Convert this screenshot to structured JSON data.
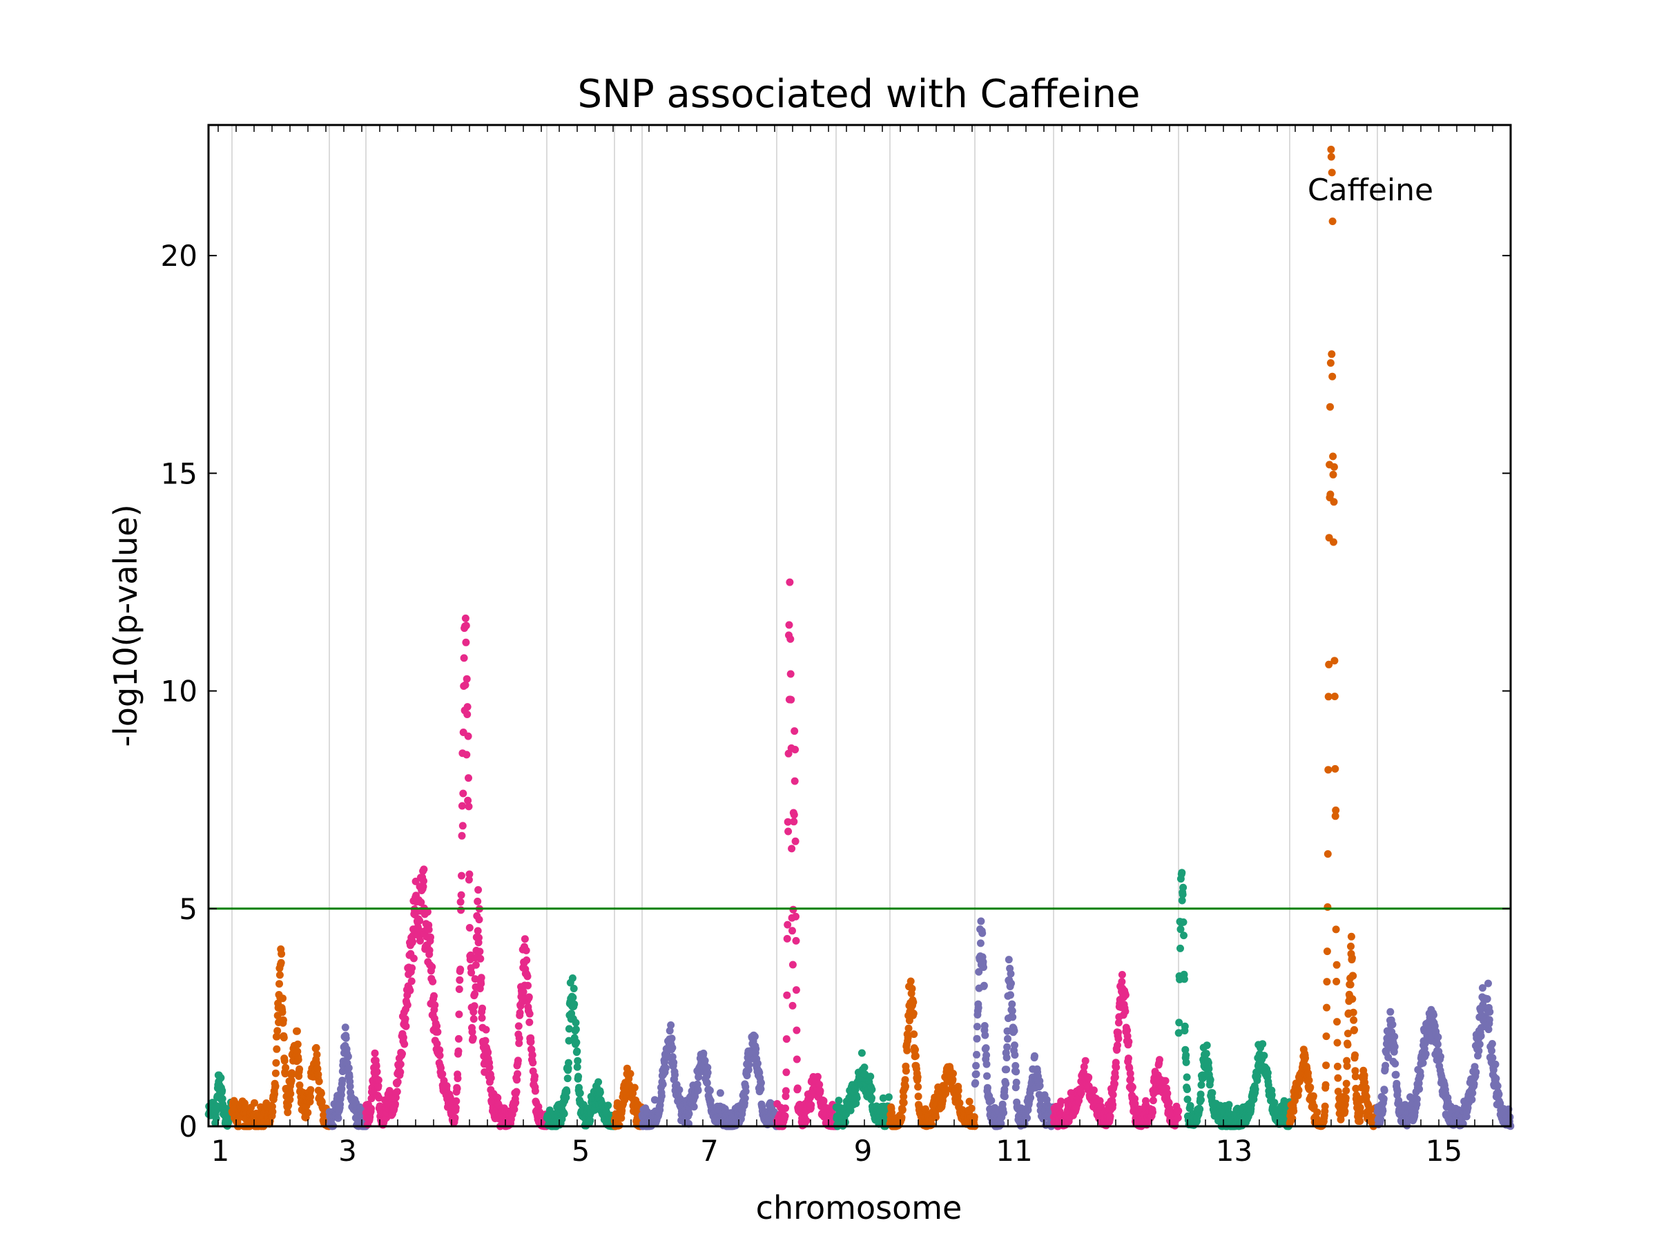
{
  "chart_data": {
    "type": "scatter",
    "title": "SNP associated with Caffeine",
    "xlabel": "chromosome",
    "ylabel": "-log10(p-value)",
    "ylim": [
      0,
      23
    ],
    "yticks": [
      0,
      5,
      10,
      15,
      20
    ],
    "xtick_labels": [
      "1",
      "3",
      "5",
      "7",
      "9",
      "11",
      "13",
      "15"
    ],
    "grid": "vertical chromosome boundary lines",
    "threshold": {
      "value": 5,
      "color": "#008000"
    },
    "annotation": {
      "text": "Caffeine",
      "chromosome": "14",
      "value": 21.3
    },
    "colors": [
      "#1b9e77",
      "#d95f02",
      "#7570b3",
      "#e7298a"
    ],
    "chromosomes": [
      {
        "name": "1",
        "color": "#1b9e77",
        "peaks": [
          {
            "pos": 0.5,
            "height": 0.8,
            "width": 0.25
          }
        ]
      },
      {
        "name": "2",
        "color": "#d95f02",
        "peaks": [
          {
            "pos": 0.5,
            "height": 3.6,
            "width": 0.08
          },
          {
            "pos": 0.65,
            "height": 2.0,
            "width": 0.1
          },
          {
            "pos": 0.85,
            "height": 1.4,
            "width": 0.1
          }
        ]
      },
      {
        "name": "3",
        "color": "#7570b3",
        "peaks": [
          {
            "pos": 0.45,
            "height": 1.8,
            "width": 0.25
          }
        ]
      },
      {
        "name": "4",
        "color": "#e7298a",
        "peaks": [
          {
            "pos": 0.05,
            "height": 1.1,
            "width": 0.04
          },
          {
            "pos": 0.3,
            "height": 5.6,
            "width": 0.16
          },
          {
            "pos": 0.55,
            "height": 11.0,
            "width": 0.05
          },
          {
            "pos": 0.62,
            "height": 4.6,
            "width": 0.05
          },
          {
            "pos": 0.67,
            "height": 1.8,
            "width": 0.04
          },
          {
            "pos": 0.88,
            "height": 3.9,
            "width": 0.07
          }
        ]
      },
      {
        "name": "5",
        "color": "#1b9e77",
        "peaks": [
          {
            "pos": 0.38,
            "height": 2.9,
            "width": 0.14
          },
          {
            "pos": 0.75,
            "height": 0.6,
            "width": 0.15
          }
        ]
      },
      {
        "name": "6",
        "color": "#d95f02",
        "peaks": [
          {
            "pos": 0.5,
            "height": 1.0,
            "width": 0.3
          }
        ]
      },
      {
        "name": "7",
        "color": "#7570b3",
        "peaks": [
          {
            "pos": 0.2,
            "height": 2.0,
            "width": 0.1
          },
          {
            "pos": 0.45,
            "height": 1.5,
            "width": 0.1
          },
          {
            "pos": 0.82,
            "height": 1.9,
            "width": 0.1
          }
        ]
      },
      {
        "name": "8",
        "color": "#e7298a",
        "peaks": [
          {
            "pos": 0.22,
            "height": 12.7,
            "width": 0.07
          },
          {
            "pos": 0.3,
            "height": 9.5,
            "width": 0.05
          },
          {
            "pos": 0.65,
            "height": 0.8,
            "width": 0.2
          }
        ]
      },
      {
        "name": "9",
        "color": "#1b9e77",
        "peaks": [
          {
            "pos": 0.5,
            "height": 1.1,
            "width": 0.3
          }
        ]
      },
      {
        "name": "10",
        "color": "#d95f02",
        "peaks": [
          {
            "pos": 0.25,
            "height": 3.1,
            "width": 0.12
          },
          {
            "pos": 0.7,
            "height": 1.1,
            "width": 0.2
          }
        ]
      },
      {
        "name": "11",
        "color": "#7570b3",
        "peaks": [
          {
            "pos": 0.08,
            "height": 4.6,
            "width": 0.1
          },
          {
            "pos": 0.45,
            "height": 3.3,
            "width": 0.1
          },
          {
            "pos": 0.75,
            "height": 1.2,
            "width": 0.12
          }
        ]
      },
      {
        "name": "12",
        "color": "#e7298a",
        "peaks": [
          {
            "pos": 0.25,
            "height": 1.0,
            "width": 0.15
          },
          {
            "pos": 0.55,
            "height": 3.4,
            "width": 0.1
          },
          {
            "pos": 0.85,
            "height": 1.1,
            "width": 0.1
          }
        ]
      },
      {
        "name": "13",
        "color": "#1b9e77",
        "peaks": [
          {
            "pos": 0.03,
            "height": 6.0,
            "width": 0.05
          },
          {
            "pos": 0.25,
            "height": 1.4,
            "width": 0.1
          },
          {
            "pos": 0.75,
            "height": 1.6,
            "width": 0.15
          }
        ]
      },
      {
        "name": "14",
        "color": "#d95f02",
        "peaks": [
          {
            "pos": 0.15,
            "height": 1.4,
            "width": 0.15
          },
          {
            "pos": 0.48,
            "height": 22.5,
            "width": 0.07
          },
          {
            "pos": 0.7,
            "height": 4.0,
            "width": 0.08
          },
          {
            "pos": 0.85,
            "height": 1.0,
            "width": 0.05
          }
        ]
      },
      {
        "name": "15",
        "color": "#7570b3",
        "peaks": [
          {
            "pos": 0.1,
            "height": 2.3,
            "width": 0.08
          },
          {
            "pos": 0.4,
            "height": 2.6,
            "width": 0.14
          },
          {
            "pos": 0.8,
            "height": 2.8,
            "width": 0.14
          }
        ]
      }
    ]
  }
}
